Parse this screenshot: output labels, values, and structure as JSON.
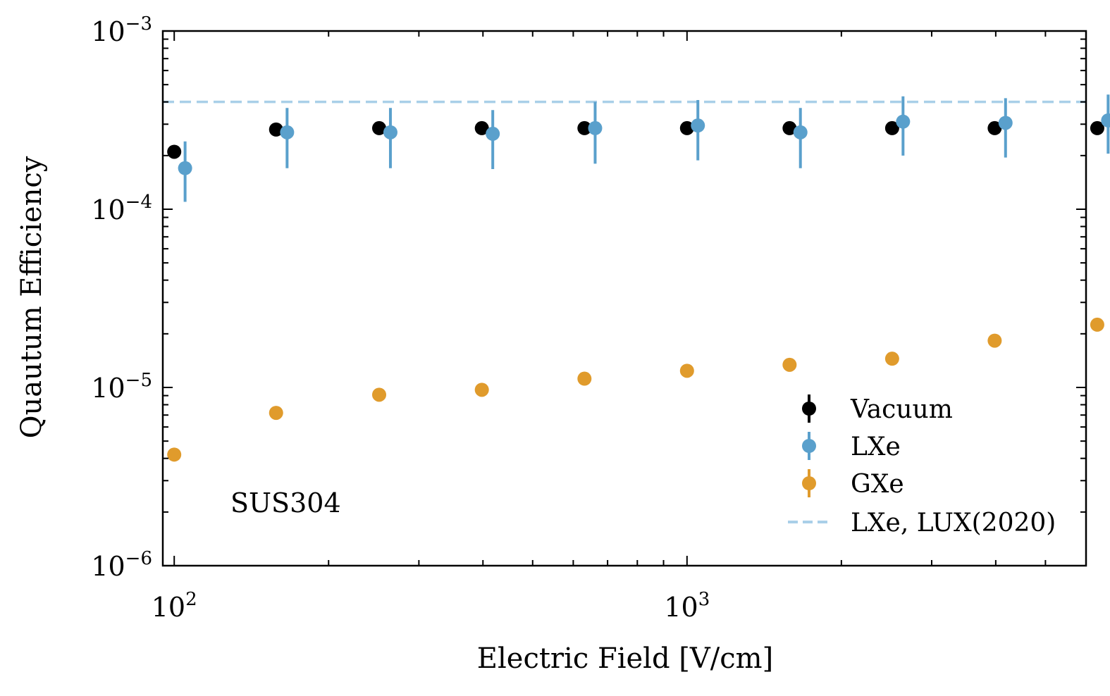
{
  "chart_data": {
    "type": "scatter",
    "title": "",
    "xlabel": "Electric Field [V/cm]",
    "ylabel": "Quautum Efficiency",
    "xscale": "log",
    "yscale": "log",
    "xlim": [
      95,
      6000
    ],
    "ylim": [
      1e-06,
      0.001
    ],
    "x_ticks": [
      {
        "value": 100,
        "base": "10",
        "exp": "2"
      },
      {
        "value": 1000,
        "base": "10",
        "exp": "3"
      }
    ],
    "y_ticks": [
      {
        "value": 1e-06,
        "base": "10",
        "exp": "−6"
      },
      {
        "value": 1e-05,
        "base": "10",
        "exp": "−5"
      },
      {
        "value": 0.0001,
        "base": "10",
        "exp": "−4"
      },
      {
        "value": 0.001,
        "base": "10",
        "exp": "−3"
      }
    ],
    "annotation": "SUS304",
    "legend_position": "lower-right",
    "series": [
      {
        "name": "Vacuum",
        "color": "#000000",
        "x": [
          100,
          158,
          251,
          398,
          631,
          1000,
          1585,
          2512,
          3981,
          6310
        ],
        "y": [
          0.00021,
          0.00028,
          0.000285,
          0.000285,
          0.000285,
          0.000285,
          0.000285,
          0.000285,
          0.000285,
          0.000285
        ]
      },
      {
        "name": "LXe",
        "color": "#5aa0cc",
        "x": [
          105,
          166,
          264,
          418,
          662,
          1050,
          1664,
          2638,
          4180,
          6626
        ],
        "y": [
          0.00017,
          0.00027,
          0.00027,
          0.000265,
          0.000285,
          0.000295,
          0.00027,
          0.00031,
          0.000305,
          0.000315
        ],
        "y_err_low": [
          0.00011,
          0.00017,
          0.00017,
          0.000168,
          0.00018,
          0.000188,
          0.00017,
          0.0002,
          0.000195,
          0.000205
        ],
        "y_err_high": [
          0.00024,
          0.00037,
          0.00037,
          0.00036,
          0.0004,
          0.00041,
          0.00037,
          0.00043,
          0.00042,
          0.00044
        ]
      },
      {
        "name": "GXe",
        "color": "#e09b2c",
        "x": [
          100,
          158,
          251,
          398,
          631,
          1000,
          1585,
          2512,
          3981,
          6310
        ],
        "y": [
          4.2e-06,
          7.2e-06,
          9.1e-06,
          9.7e-06,
          1.12e-05,
          1.24e-05,
          1.34e-05,
          1.45e-05,
          1.83e-05,
          2.25e-05
        ]
      }
    ],
    "reference_line": {
      "name": "LXe, LUX(2020)",
      "color": "#a9cfe8",
      "style": "dashed",
      "y": 0.0004
    }
  }
}
